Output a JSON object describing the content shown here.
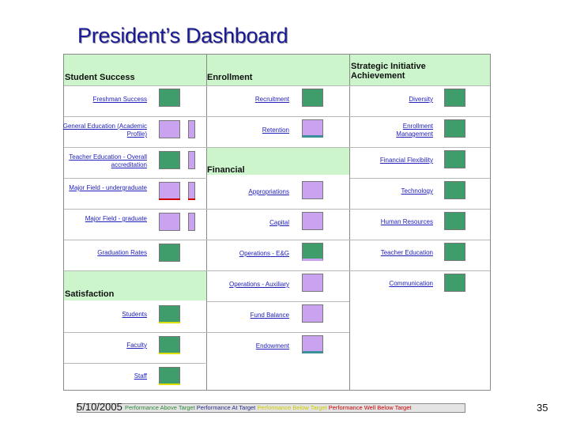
{
  "title": "President’s Dashboard",
  "headers": {
    "student_success": "Student Success",
    "enrollment": "Enrollment",
    "strategic": "Strategic Initiative Achievement",
    "financial": "Financial",
    "satisfaction": "Satisfaction"
  },
  "student_success": [
    {
      "label": "Freshman Success",
      "status": "green"
    },
    {
      "label": "General Education (Academic Profile)",
      "status": "purple"
    },
    {
      "label": "Teacher Education - Overall accreditation",
      "status": "green"
    },
    {
      "label": "Major Field - undergraduate",
      "status": "purple"
    },
    {
      "label": "Major Field - graduate",
      "status": "purple"
    },
    {
      "label": "Graduation Rates",
      "status": "green"
    }
  ],
  "enrollment": [
    {
      "label": "Recruitment",
      "status": "green"
    },
    {
      "label": "Retention",
      "status": "purple"
    }
  ],
  "financial": [
    {
      "label": "Appropriations",
      "status": "purple"
    },
    {
      "label": "Capital",
      "status": "purple"
    },
    {
      "label": "Operations - E&G",
      "status": "green"
    },
    {
      "label": "Operations - Auxiliary",
      "status": "purple"
    },
    {
      "label": "Fund Balance",
      "status": "purple"
    },
    {
      "label": "Endowment",
      "status": "purple"
    }
  ],
  "strategic": [
    {
      "label": "Diversity",
      "status": "green"
    },
    {
      "label": "Enrollment Management",
      "status": "green"
    },
    {
      "label": "Financial Flexibility",
      "status": "green"
    },
    {
      "label": "Technology",
      "status": "green"
    },
    {
      "label": "Human Resources",
      "status": "green"
    },
    {
      "label": "Teacher Education",
      "status": "green"
    },
    {
      "label": "Communication",
      "status": "green"
    }
  ],
  "satisfaction": [
    {
      "label": "Students",
      "status": "green"
    },
    {
      "label": "Faculty",
      "status": "green"
    },
    {
      "label": "Staff",
      "status": "green"
    }
  ],
  "legend": [
    {
      "text": "Performance Above Target",
      "color": "#2f8a3a"
    },
    {
      "text": "Performance At Target",
      "color": "#2a2a8a"
    },
    {
      "text": "Performance Below Target",
      "color": "#cccc00"
    },
    {
      "text": "Performance Well Below Target",
      "color": "#cc0000"
    }
  ],
  "colors": {
    "green": "#3f9d6c",
    "purple": "#c9a2f0",
    "header_band": "#ccf5cc",
    "title": "#1a1a99",
    "link": "#2020bb"
  },
  "footer": {
    "date": "5/10/2005",
    "page_number": "35"
  }
}
